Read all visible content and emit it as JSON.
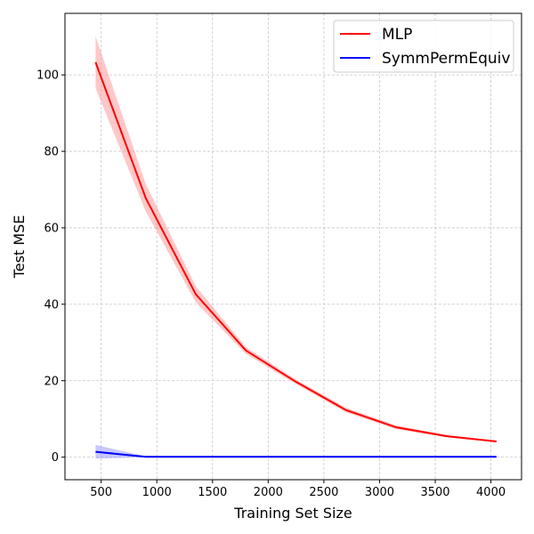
{
  "chart_data": {
    "type": "line",
    "title": "",
    "xlabel": "Training Set Size",
    "ylabel": "Test MSE",
    "xlim": [
      175,
      4275
    ],
    "ylim": [
      -5.9,
      116.1
    ],
    "xticks": [
      500,
      1000,
      1500,
      2000,
      2500,
      3000,
      3500,
      4000
    ],
    "yticks": [
      0,
      20,
      40,
      60,
      80,
      100
    ],
    "grid": true,
    "legend_position": "top-right",
    "x": [
      450,
      900,
      1350,
      1800,
      2250,
      2700,
      3150,
      3600,
      4050
    ],
    "series": [
      {
        "name": "MLP",
        "color": "#ff0000",
        "band_color": "#ff9a9a",
        "values": [
          103.3,
          67.8,
          42.6,
          27.9,
          19.7,
          12.3,
          7.8,
          5.5,
          4.1
        ],
        "lower": [
          96.5,
          64.3,
          40.5,
          27.0,
          19.1,
          11.7,
          7.3,
          5.2,
          3.9
        ],
        "upper": [
          110.1,
          71.5,
          44.7,
          28.8,
          20.3,
          12.9,
          8.3,
          5.8,
          4.3
        ]
      },
      {
        "name": "SymmPermEquiv",
        "color": "#0000ff",
        "band_color": "#9a9aff",
        "values": [
          1.4,
          0.1,
          0.1,
          0.1,
          0.1,
          0.1,
          0.1,
          0.1,
          0.1
        ],
        "lower": [
          -0.4,
          0.0,
          0.0,
          0.0,
          0.0,
          0.0,
          0.0,
          0.0,
          0.0
        ],
        "upper": [
          3.2,
          0.2,
          0.2,
          0.2,
          0.2,
          0.2,
          0.2,
          0.2,
          0.2
        ]
      }
    ]
  }
}
